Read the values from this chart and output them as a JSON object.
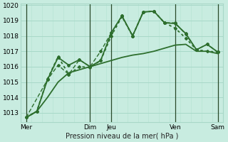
{
  "xlabel": "Pression niveau de la mer( hPa )",
  "bg_color": "#c8ece0",
  "grid_color_major": "#a8d8c8",
  "grid_color_minor": "#b8e4d4",
  "line_color": "#2d6e2d",
  "ylim": [
    1012.4,
    1020.1
  ],
  "xlim": [
    0,
    114
  ],
  "yticks": [
    1013,
    1014,
    1015,
    1016,
    1017,
    1018,
    1019,
    1020
  ],
  "xtick_positions": [
    3,
    39,
    51,
    87,
    111
  ],
  "xtick_labels": [
    "Mer",
    "Dim",
    "Jeu",
    "Ven",
    "Sam"
  ],
  "vlines": [
    3,
    39,
    51,
    87,
    111
  ],
  "series": [
    {
      "x": [
        3,
        9,
        15,
        21,
        27,
        33,
        39,
        45,
        51,
        57,
        63,
        69,
        75,
        81,
        87,
        93,
        99,
        105,
        111
      ],
      "y": [
        1012.7,
        1013.1,
        1014.0,
        1015.0,
        1015.6,
        1015.8,
        1016.0,
        1016.2,
        1016.4,
        1016.6,
        1016.75,
        1016.85,
        1017.0,
        1017.2,
        1017.4,
        1017.45,
        1017.0,
        1017.0,
        1016.85
      ],
      "marker": false,
      "linewidth": 1.3,
      "dash": "solid"
    },
    {
      "x": [
        3,
        9,
        15,
        21,
        27,
        33,
        39,
        45,
        51,
        57,
        63,
        69,
        75,
        81,
        87,
        93,
        99,
        105,
        111
      ],
      "y": [
        1012.7,
        1013.1,
        1015.15,
        1016.6,
        1016.1,
        1016.45,
        1016.0,
        1016.4,
        1018.2,
        1019.3,
        1018.0,
        1019.55,
        1019.6,
        1018.85,
        1018.8,
        1018.15,
        1017.1,
        1017.45,
        1016.95
      ],
      "marker": true,
      "linewidth": 1.3,
      "dash": "solid"
    },
    {
      "x": [
        3,
        9,
        15,
        21,
        27,
        33,
        39,
        45,
        51,
        57,
        63,
        69,
        75,
        81,
        87,
        93,
        99,
        105,
        111
      ],
      "y": [
        1012.7,
        1013.1,
        1015.2,
        1016.65,
        1015.5,
        1016.0,
        1015.95,
        1016.4,
        1018.0,
        1019.25,
        1018.0,
        1019.55,
        1019.6,
        1018.85,
        1018.5,
        1017.85,
        1017.1,
        1017.0,
        1016.95
      ],
      "marker": true,
      "linewidth": 1.3,
      "dash": "dotted"
    },
    {
      "x": [
        3,
        15,
        21,
        27,
        33,
        39,
        45,
        51,
        57,
        63,
        69,
        75,
        81,
        87,
        93,
        99,
        105,
        111
      ],
      "y": [
        1012.7,
        1015.15,
        1016.1,
        1015.5,
        1016.45,
        1016.0,
        1017.0,
        1018.2,
        1019.3,
        1018.0,
        1019.55,
        1019.6,
        1018.85,
        1018.85,
        1018.1,
        1017.1,
        1017.45,
        1016.95
      ],
      "marker": true,
      "linewidth": 1.0,
      "dash": "dashed"
    }
  ]
}
